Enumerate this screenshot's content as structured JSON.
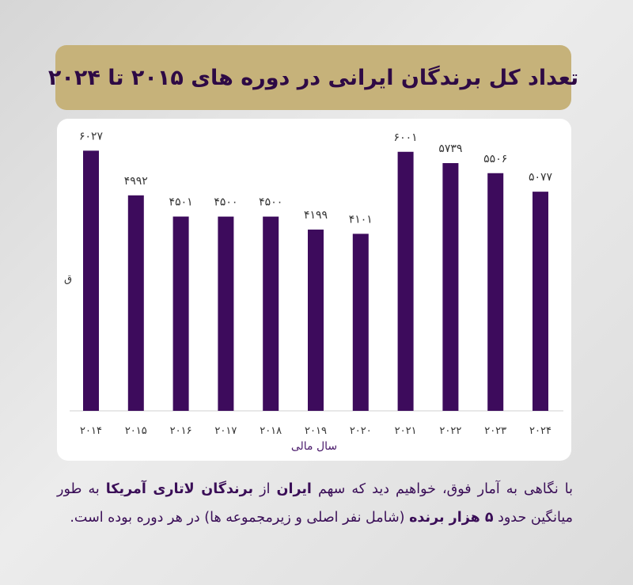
{
  "title": "تعداد کل برندگان ایرانی در دوره های ۲۰۱۵ تا ۲۰۲۴",
  "chart_data": {
    "type": "bar",
    "categories": [
      "۲۰۱۴",
      "۲۰۱۵",
      "۲۰۱۶",
      "۲۰۱۷",
      "۲۰۱۸",
      "۲۰۱۹",
      "۲۰۲۰",
      "۲۰۲۱",
      "۲۰۲۲",
      "۲۰۲۳",
      "۲۰۲۴"
    ],
    "values": [
      6027,
      4992,
      4501,
      4500,
      4500,
      4199,
      4101,
      6001,
      5739,
      5506,
      5077
    ],
    "value_labels": [
      "۶۰۲۷",
      "۴۹۹۲",
      "۴۵۰۱",
      "۴۵۰۰",
      "۴۵۰۰",
      "۴۱۹۹",
      "۴۱۰۱",
      "۶۰۰۱",
      "۵۷۳۹",
      "۵۵۰۶",
      "۵۰۷۷"
    ],
    "xlabel": "سال مالی",
    "ylabel": "ق",
    "ylim": [
      0,
      6400
    ],
    "bar_color": "#3d0b5c",
    "grid": false
  },
  "description": {
    "p1": "با نگاهی به آمار فوق، خواهیم دید که سهم ",
    "b1": "ایران",
    "p2": " از ",
    "b2": "برندگان لاتاری آمریکا",
    "p3": " به طور میانگین حدود ",
    "b3": "۵ هزار برنده",
    "p4": " (شامل نفر اصلی و زیرمجموعه ها) در هر دوره بوده است."
  }
}
